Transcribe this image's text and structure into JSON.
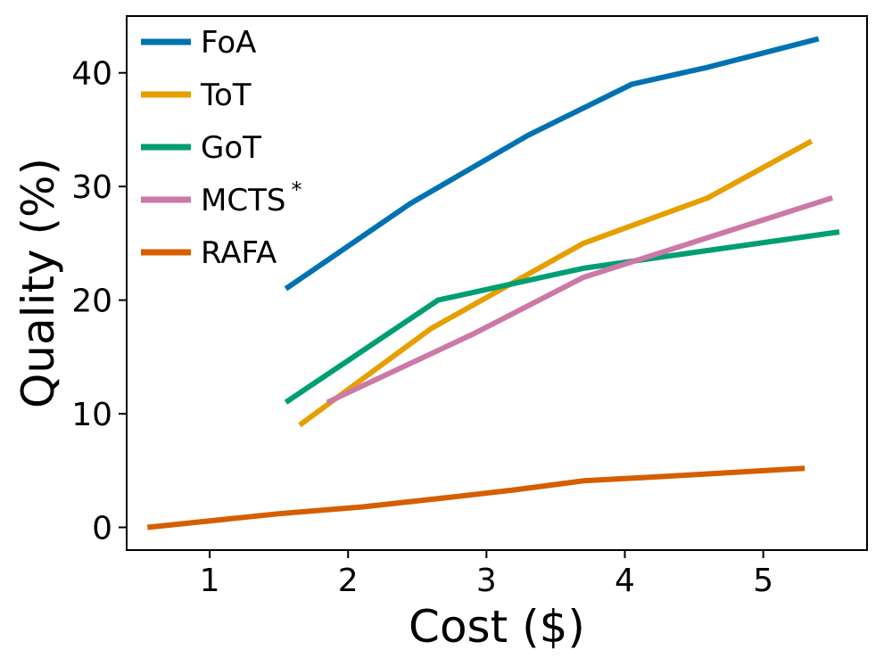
{
  "chart_data": {
    "type": "line",
    "title": "",
    "xlabel": "Cost ($)",
    "ylabel": "Quality (%)",
    "xlim": [
      0.4,
      5.75
    ],
    "ylim": [
      -2,
      45
    ],
    "xticks": [
      1,
      2,
      3,
      4,
      5
    ],
    "yticks": [
      0,
      10,
      20,
      30,
      40
    ],
    "grid": false,
    "legend_position": "top-left",
    "series": [
      {
        "name": "FoA",
        "superscript": "",
        "color": "#0072b2",
        "x": [
          1.55,
          2.45,
          3.3,
          4.05,
          4.6,
          5.4
        ],
        "y": [
          21,
          28.5,
          34.5,
          39,
          40.5,
          43
        ]
      },
      {
        "name": "ToT",
        "superscript": "",
        "color": "#e69f00",
        "x": [
          1.65,
          2.6,
          3.7,
          4.6,
          5.35
        ],
        "y": [
          9,
          17.5,
          25,
          29,
          34
        ]
      },
      {
        "name": "GoT",
        "superscript": "",
        "color": "#009e73",
        "x": [
          1.55,
          2.65,
          3.7,
          4.5,
          5.55
        ],
        "y": [
          11,
          20,
          22.8,
          24.2,
          26
        ]
      },
      {
        "name": "MCTS",
        "superscript": "*",
        "color": "#cc79a7",
        "x": [
          1.85,
          2.9,
          3.7,
          4.6,
          5.5
        ],
        "y": [
          11,
          17,
          22,
          25.5,
          29
        ]
      },
      {
        "name": "RAFA",
        "superscript": "",
        "color": "#d55e00",
        "x": [
          0.55,
          1.5,
          2.1,
          2.7,
          3.2,
          3.7,
          4.3,
          5.3
        ],
        "y": [
          0,
          1.2,
          1.8,
          2.6,
          3.3,
          4.1,
          4.5,
          5.2
        ]
      }
    ]
  }
}
